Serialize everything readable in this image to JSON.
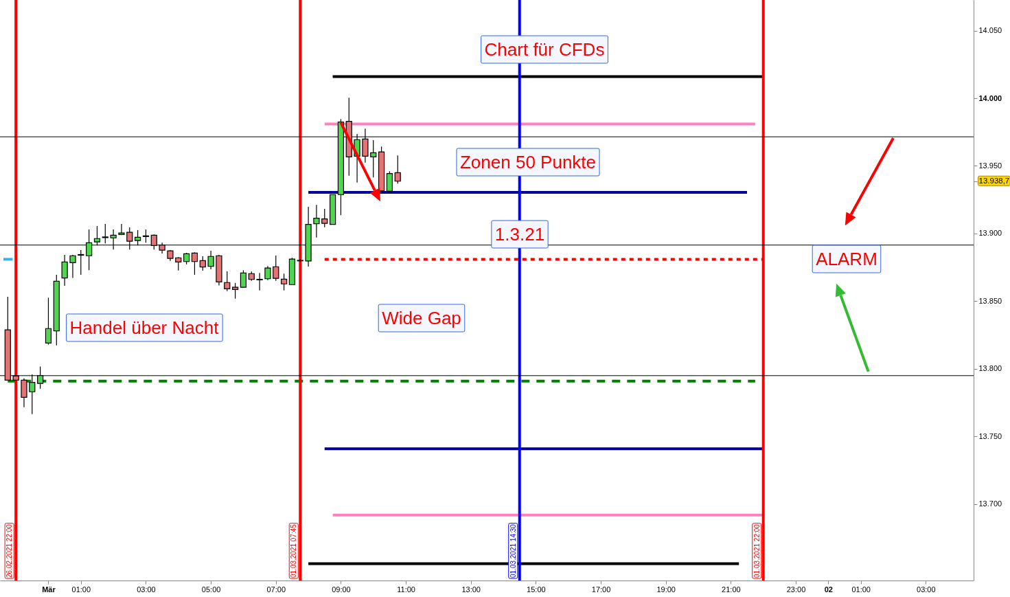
{
  "chart_data": {
    "type": "candlestick",
    "x": [
      "2021-02-28T22:45",
      "2021-02-28T23:00",
      "2021-02-28T23:15",
      "2021-02-28T23:30",
      "2021-02-28T23:45",
      "2021-03-01T00:00",
      "2021-03-01T00:15",
      "2021-03-01T00:30",
      "2021-03-01T00:45",
      "2021-03-01T01:00",
      "2021-03-01T01:15",
      "2021-03-01T01:30",
      "2021-03-01T01:45",
      "2021-03-01T02:00",
      "2021-03-01T02:15",
      "2021-03-01T02:30",
      "2021-03-01T02:45",
      "2021-03-01T03:00",
      "2021-03-01T03:15",
      "2021-03-01T03:30",
      "2021-03-01T03:45",
      "2021-03-01T04:00",
      "2021-03-01T04:15",
      "2021-03-01T04:30",
      "2021-03-01T04:45",
      "2021-03-01T05:00",
      "2021-03-01T05:15",
      "2021-03-01T05:30",
      "2021-03-01T05:45",
      "2021-03-01T06:00",
      "2021-03-01T06:15",
      "2021-03-01T06:30",
      "2021-03-01T06:45",
      "2021-03-01T07:00",
      "2021-03-01T07:15",
      "2021-03-01T07:30",
      "2021-03-01T07:45",
      "2021-03-01T08:00",
      "2021-03-01T08:15",
      "2021-03-01T08:30",
      "2021-03-01T08:45",
      "2021-03-01T09:00",
      "2021-03-01T09:15",
      "2021-03-01T09:30",
      "2021-03-01T09:45",
      "2021-03-01T10:00",
      "2021-03-01T10:15",
      "2021-03-01T10:30",
      "2021-03-01T10:45"
    ],
    "ohlc": [
      [
        13828.8,
        13853.3,
        13791.7,
        13791.7
      ],
      [
        13794.8,
        13795,
        13791.5,
        13791.7
      ],
      [
        13791.7,
        13793,
        13771.7,
        13779
      ],
      [
        13783.1,
        13795.9,
        13766.6,
        13790
      ],
      [
        13789.2,
        13801.8,
        13785.4,
        13795.1
      ],
      [
        13819.1,
        13852.6,
        13817.9,
        13829.8
      ],
      [
        13828.1,
        13869.5,
        13817.4,
        13864.8
      ],
      [
        13867.2,
        13884.3,
        13861.4,
        13879
      ],
      [
        13878.5,
        13884.3,
        13867.2,
        13883.6
      ],
      [
        13884,
        13887.8,
        13869.5,
        13884.5
      ],
      [
        13883.6,
        13903,
        13872.9,
        13893.2
      ],
      [
        13893.8,
        13905.6,
        13891.2,
        13896.3
      ],
      [
        13897,
        13907.1,
        13892.7,
        13897.5
      ],
      [
        13896.8,
        13903,
        13888.2,
        13898.8
      ],
      [
        13899.3,
        13907.1,
        13898.8,
        13900.4
      ],
      [
        13900.9,
        13904.6,
        13888.2,
        13894.3
      ],
      [
        13894.8,
        13902.5,
        13891.2,
        13897.3
      ],
      [
        13897.8,
        13903,
        13893.2,
        13898.3
      ],
      [
        13898.8,
        13899.3,
        13888.2,
        13891.2
      ],
      [
        13891.5,
        13893.2,
        13885.3,
        13887.7
      ],
      [
        13887.2,
        13887.8,
        13879.8,
        13881.6
      ],
      [
        13882.1,
        13882.6,
        13872.7,
        13879
      ],
      [
        13879.3,
        13885.8,
        13877.3,
        13885.1
      ],
      [
        13885.6,
        13886.1,
        13869.5,
        13879.3
      ],
      [
        13880,
        13883.2,
        13872.6,
        13875.3
      ],
      [
        13875.8,
        13887.3,
        13873.6,
        13883.1
      ],
      [
        13883.6,
        13884.3,
        13861.6,
        13864.3
      ],
      [
        13863.8,
        13872.1,
        13857.5,
        13859.2
      ],
      [
        13860.3,
        13863.5,
        13851.9,
        13858.7
      ],
      [
        13860.3,
        13872.9,
        13860.3,
        13870.9
      ],
      [
        13870.4,
        13871.9,
        13865.1,
        13866.1
      ],
      [
        13865.8,
        13870.9,
        13858,
        13866.2
      ],
      [
        13866.6,
        13876,
        13865.6,
        13874.5
      ],
      [
        13875.5,
        13883.8,
        13865.1,
        13866.9
      ],
      [
        13866.3,
        13870.4,
        13858,
        13862.8
      ],
      [
        13862.3,
        13882.1,
        13862.3,
        13881.1
      ],
      [
        13879.8,
        13881,
        13879.5,
        13880.2
      ],
      [
        13879.7,
        13919.8,
        13875.6,
        13906.8
      ],
      [
        13907.3,
        13921.2,
        13897.1,
        13911.3
      ],
      [
        13910.8,
        13918.3,
        13904.7,
        13907.5
      ],
      [
        13906.8,
        13928.8,
        13906.8,
        13928.8
      ],
      [
        13928.8,
        13984.6,
        13913.6,
        13982.4
      ],
      [
        13982.9,
        14000.4,
        13942.8,
        13956.7
      ],
      [
        13957.2,
        13973.6,
        13937.7,
        13969.4
      ],
      [
        13969.9,
        13977.5,
        13952.4,
        13957.2
      ],
      [
        13956.7,
        13969,
        13941.5,
        13959.7
      ],
      [
        13960.3,
        13964.3,
        13931.5,
        13931.5
      ],
      [
        13931.3,
        13946,
        13931.3,
        13944.3
      ],
      [
        13945,
        13957.7,
        13936.9,
        13938.7
      ]
    ],
    "colors": [
      "#e57373",
      "#e57373",
      "#e57373",
      "#4fd64f",
      "#4fd64f",
      "#4fd64f",
      "#4fd64f",
      "#4fd64f",
      "#4fd64f",
      "#4fd64f",
      "#4fd64f",
      "#4fd64f",
      "#4fd64f",
      "#4fd64f",
      "#4fd64f",
      "#e57373",
      "#4fd64f",
      "#4fd64f",
      "#e57373",
      "#e57373",
      "#e57373",
      "#e57373",
      "#4fd64f",
      "#e57373",
      "#e57373",
      "#4fd64f",
      "#e57373",
      "#e57373",
      "#e57373",
      "#4fd64f",
      "#e57373",
      "#4fd64f",
      "#4fd64f",
      "#e57373",
      "#e57373",
      "#4fd64f",
      "#4fd64f",
      "#4fd64f",
      "#4fd64f",
      "#e57373",
      "#4fd64f",
      "#4fd64f",
      "#e57373",
      "#4fd64f",
      "#e57373",
      "#4fd64f",
      "#e57373",
      "#4fd64f",
      "#e57373"
    ],
    "series": [
      {
        "type": "line",
        "x": [
          "2021-03-01T08:45",
          "2021-03-01T22:00"
        ],
        "values": [
          14016,
          14016
        ],
        "color": "#000000",
        "line_style": "solid"
      },
      {
        "type": "line",
        "x": [
          "2021-03-01T08:30",
          "2021-03-01T21:45"
        ],
        "values": [
          13981,
          13981
        ],
        "color": "#ff80c0",
        "line_style": "solid"
      },
      {
        "type": "line",
        "x": [
          "2021-03-01T08:00",
          "2021-03-01T21:30"
        ],
        "values": [
          13930.5,
          13930.5
        ],
        "color": "#000099",
        "line_style": "solid"
      },
      {
        "type": "line",
        "x": [
          "2021-03-01T08:30",
          "2021-03-01T22:00"
        ],
        "values": [
          13881,
          13881
        ],
        "color": "#ff0000",
        "line_style": "dotted"
      },
      {
        "type": "line",
        "x": [
          "2021-02-28T22:45",
          "2021-03-01T21:45"
        ],
        "values": [
          13791,
          13791
        ],
        "color": "#008000",
        "line_style": "dashed"
      },
      {
        "type": "line",
        "x": [
          "2021-03-01T08:30",
          "2021-03-01T22:00"
        ],
        "values": [
          13741,
          13741
        ],
        "color": "#000099",
        "line_style": "solid"
      },
      {
        "type": "line",
        "x": [
          "2021-03-01T08:45",
          "2021-03-01T22:00"
        ],
        "values": [
          13692,
          13692
        ],
        "color": "#ff80c0",
        "line_style": "solid"
      },
      {
        "type": "line",
        "x": [
          "2021-03-01T08:00",
          "2021-03-01T21:15"
        ],
        "values": [
          13656,
          13656
        ],
        "color": "#000000",
        "line_style": "solid"
      },
      {
        "type": "line",
        "x": [
          "2021-02-28T22:37",
          "2021-02-28T22:54"
        ],
        "values": [
          13881,
          13881
        ],
        "color": "#33b5f0",
        "line_style": "solid"
      }
    ],
    "ref_lines": [
      {
        "axis": "x",
        "value": "2021-02-28T23:00",
        "label": "26.02.2021 22:00",
        "color": "#ff0000"
      },
      {
        "axis": "x",
        "value": "2021-03-01T07:45",
        "label": "01.03.2021 07:45",
        "color": "#ff0000"
      },
      {
        "axis": "x",
        "value": "2021-03-01T14:30",
        "label": "01.03.2021 14:30",
        "color": "#0000ff"
      },
      {
        "axis": "x",
        "value": "2021-03-01T22:00",
        "label": "01.03.2021 22:00",
        "color": "#ff0000"
      },
      {
        "axis": "y",
        "value": 13971.5,
        "color": "#000000"
      },
      {
        "axis": "y",
        "value": 13891.5,
        "color": "#000000"
      },
      {
        "axis": "y",
        "value": 13795,
        "color": "#000000"
      }
    ],
    "annotations": [
      "Chart für CFDs",
      "Zonen 50 Punkte",
      "1.3.21",
      "ALARM",
      "Wide Gap",
      "Handel über Nacht"
    ],
    "xlim": [
      "2021-02-28T22:37",
      "2021-03-02T04:22"
    ],
    "ylim": [
      13643.6,
      14072.6
    ],
    "xticks": [
      {
        "value": "2021-03-01T00:00",
        "label": "Mär"
      },
      {
        "value": "2021-03-01T01:00",
        "label": "01:00"
      },
      {
        "value": "2021-03-01T03:00",
        "label": "03:00"
      },
      {
        "value": "2021-03-01T05:00",
        "label": "05:00"
      },
      {
        "value": "2021-03-01T07:00",
        "label": "07:00"
      },
      {
        "value": "2021-03-01T09:00",
        "label": "09:00"
      },
      {
        "value": "2021-03-01T11:00",
        "label": "11:00"
      },
      {
        "value": "2021-03-01T13:00",
        "label": "13:00"
      },
      {
        "value": "2021-03-01T15:00",
        "label": "15:00"
      },
      {
        "value": "2021-03-01T17:00",
        "label": "17:00"
      },
      {
        "value": "2021-03-01T19:00",
        "label": "19:00"
      },
      {
        "value": "2021-03-01T21:00",
        "label": "21:00"
      },
      {
        "value": "2021-03-01T23:00",
        "label": "23:00"
      },
      {
        "value": "2021-03-02T00:00",
        "label": "02"
      },
      {
        "value": "2021-03-02T01:00",
        "label": "01:00"
      },
      {
        "value": "2021-03-02T03:00",
        "label": "03:00"
      }
    ],
    "yticks": [
      {
        "value": 13700,
        "label": "13.700"
      },
      {
        "value": 13750,
        "label": "13.750"
      },
      {
        "value": 13800,
        "label": "13.800"
      },
      {
        "value": 13850,
        "label": "13.850"
      },
      {
        "value": 13900,
        "label": "13.900"
      },
      {
        "value": 13938.7,
        "label": "13.938,7"
      },
      {
        "value": 13950,
        "label": "13.950"
      },
      {
        "value": 14000,
        "label": "14.000"
      },
      {
        "value": 14050,
        "label": "14.050"
      }
    ],
    "grid": false
  }
}
